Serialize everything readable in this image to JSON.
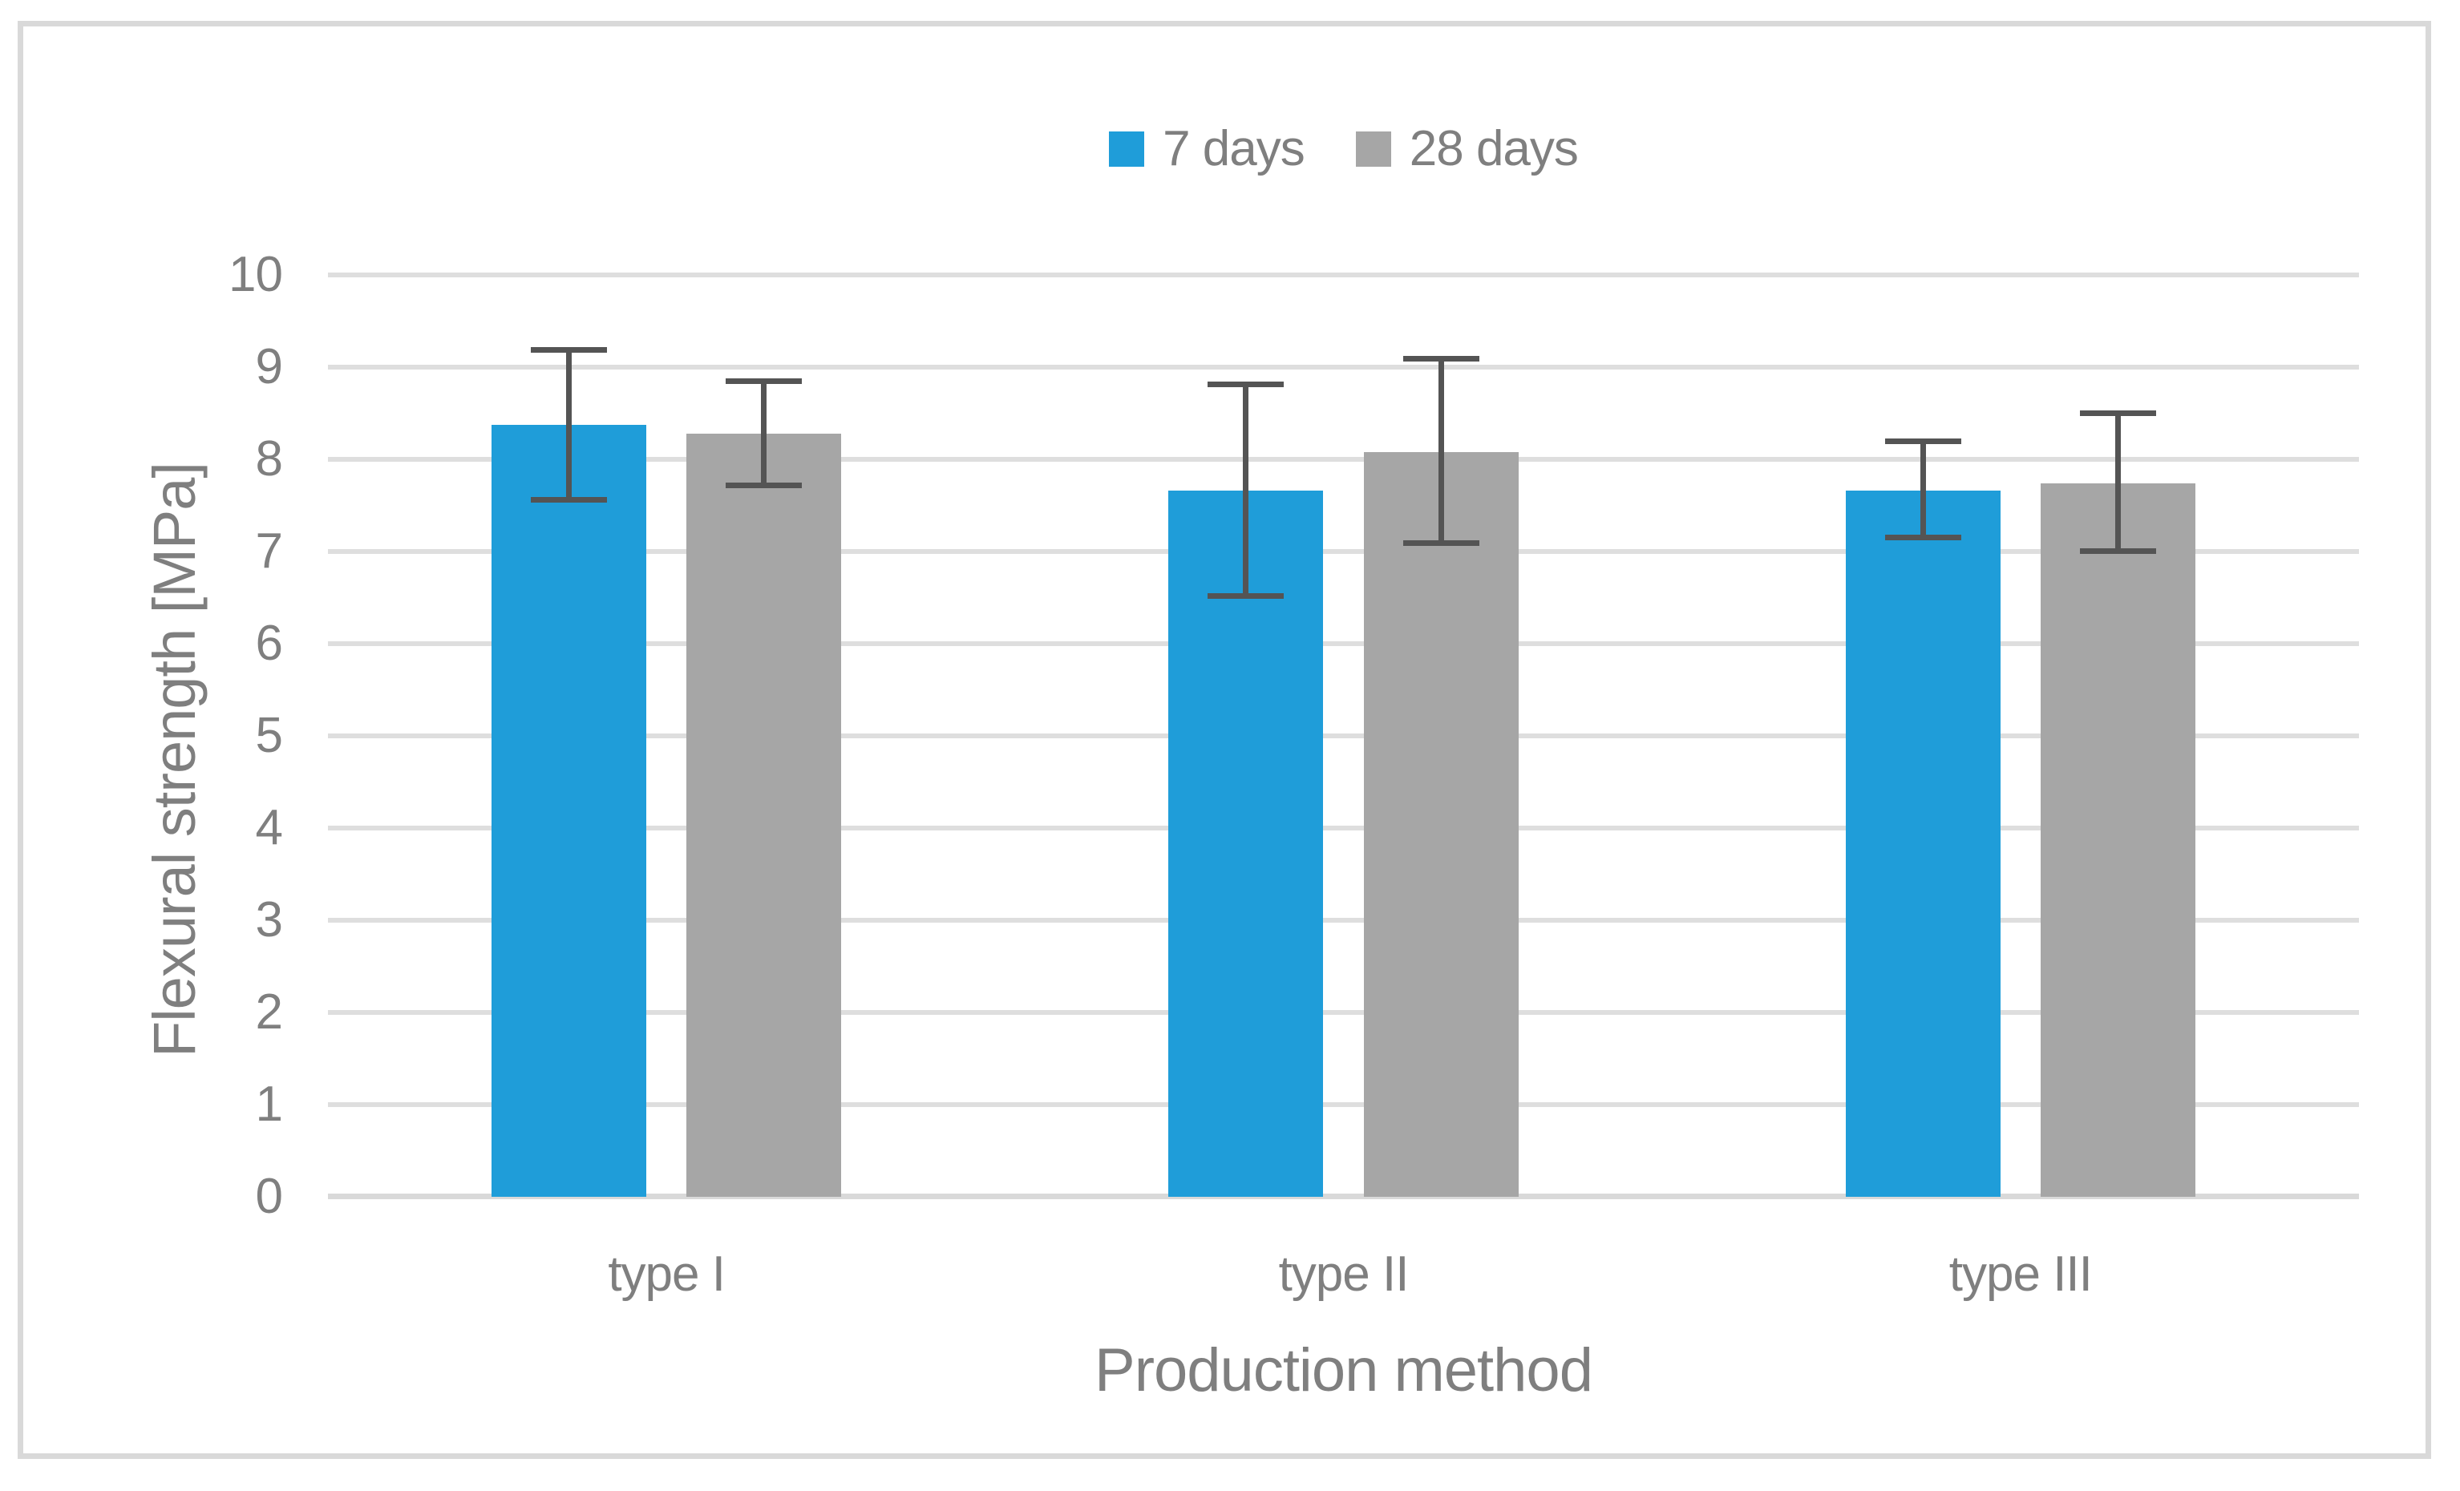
{
  "figure": {
    "background_color": "#ffffff",
    "border_color": "#d9d9d9"
  },
  "legend": {
    "items": [
      {
        "label": "7 days",
        "color": "#1f9dd9"
      },
      {
        "label": "28 days",
        "color": "#a6a6a6"
      }
    ]
  },
  "chart_data": {
    "type": "bar",
    "title": "",
    "xlabel": "Production method",
    "ylabel": "Flexural strength [MPa]",
    "categories": [
      "type I",
      "type II",
      "type III"
    ],
    "series": [
      {
        "name": "7 days",
        "color": "#1f9dd9",
        "values": [
          8.37,
          7.66,
          7.66
        ],
        "error_top": [
          9.22,
          8.84,
          8.23
        ],
        "error_bottom": [
          7.53,
          6.49,
          7.12
        ]
      },
      {
        "name": "28 days",
        "color": "#a6a6a6",
        "values": [
          8.28,
          8.08,
          7.74
        ],
        "error_top": [
          8.88,
          9.12,
          8.53
        ],
        "error_bottom": [
          7.69,
          7.06,
          6.97
        ]
      }
    ],
    "ylim": [
      0,
      10
    ],
    "yticks": [
      0,
      1,
      2,
      3,
      4,
      5,
      6,
      7,
      8,
      9,
      10
    ],
    "grid": "horizontal",
    "legend_position": "top-center",
    "error_bar_color": "#545454",
    "gridline_color": "#dedede",
    "axis_line_color": "#d9d9d9",
    "text_color": "#7f7f7f"
  }
}
